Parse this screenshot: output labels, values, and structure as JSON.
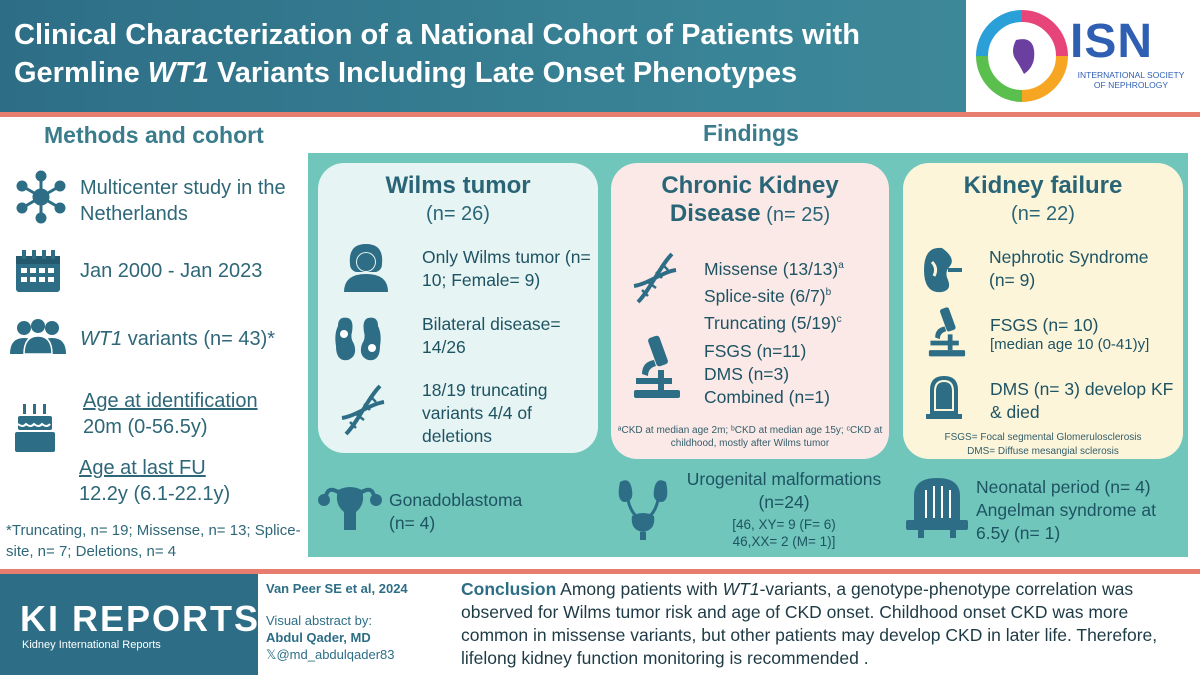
{
  "header": {
    "title_line1": "Clinical Characterization of a National Cohort of Patients with",
    "title_line2_pre": "Germline ",
    "title_line2_em": "WT1",
    "title_line2_post": " Variants Including Late Onset Phenotypes",
    "logo_text": "ISN",
    "logo_sub": "INTERNATIONAL SOCIETY OF NEPHROLOGY"
  },
  "methods": {
    "heading": "Methods and cohort",
    "study": "Multicenter study in the Netherlands",
    "period": "Jan 2000 -  Jan 2023",
    "variants_em": "WT1",
    "variants_rest": " variants (n= 43)*",
    "age_id_label": "Age at identification",
    "age_id_value": "20m (0-56.5y)",
    "age_fu_label": "Age at last FU",
    "age_fu_value": "12.2y (6.1-22.1y)",
    "footnote": "*Truncating, n= 19; Missense, n= 13; Splice-site, n= 7; Deletions, n= 4"
  },
  "findings": {
    "heading": "Findings",
    "wilms": {
      "title": "Wilms tumor",
      "n": "(n= 26)",
      "item1": "Only Wilms tumor (n= 10; Female= 9)",
      "item2": "Bilateral disease= 14/26",
      "item3": "18/19 truncating variants 4/4 of deletions"
    },
    "ckd": {
      "title_line1": "Chronic Kidney",
      "title_line2": "Disease",
      "n": " (n= 25)",
      "missense": "Missense (13/13)",
      "missense_sup": "a",
      "splice": "Splice-site (6/7)",
      "splice_sup": "b",
      "truncating": "Truncating (5/19)",
      "truncating_sup": "c",
      "fsgs": "FSGS (n=11)",
      "dms": "DMS (n=3)",
      "combined": "Combined (n=1)",
      "footnote": "ᵃCKD at median age 2m; ᵇCKD at median age 15y; ᶜCKD at childhood, mostly after Wilms tumor"
    },
    "kf": {
      "title": "Kidney failure",
      "n": "(n= 22)",
      "nephrotic": "Nephrotic Syndrome (n= 9)",
      "fsgs": "FSGS (n= 10)",
      "fsgs_median": "[median age 10 (0-41)y]",
      "dms": "DMS (n= 3) develop KF & died",
      "abbr1": "FSGS= Focal segmental Glomerulosclerosis",
      "abbr2": "DMS= Diffuse mesangial sclerosis"
    },
    "gonado": "Gonadoblastoma (n= 4)",
    "urogenital_title": "Urogenital malformations (n=24)",
    "urogenital_detail1": "[46, XY= 9 (F= 6)",
    "urogenital_detail2": "46,XX= 2 (M= 1)]",
    "neonatal": "Neonatal period (n= 4) Angelman syndrome at 6.5y (n= 1)"
  },
  "footer": {
    "journal": "KI REPORTS",
    "journal_sub": "Kidney International Reports",
    "citation": "Van Peer SE et al, 2024",
    "va_label": "Visual abstract by:",
    "author": "Abdul Qader, MD",
    "handle": "𝕏@md_abdulqader83",
    "conclusion_label": "Conclusion",
    "conclusion_pre": " Among patients with ",
    "conclusion_em": "WT1",
    "conclusion_post": "-variants, a genotype-phenotype correlation was observed for Wilms tumor risk and age of CKD onset. Childhood onset CKD was more common in missense variants, but other patients may develop CKD in later life. Therefore, lifelong kidney function monitoring is recommended ."
  },
  "colors": {
    "header": "#2d6e86",
    "accent_rule": "#e77d6e",
    "panel": "#70c6bb",
    "card_wilms": "#e6f4f3",
    "card_ckd": "#fbe9e7",
    "card_kf": "#fcf5da",
    "logo_blue": "#2f5fb3"
  }
}
